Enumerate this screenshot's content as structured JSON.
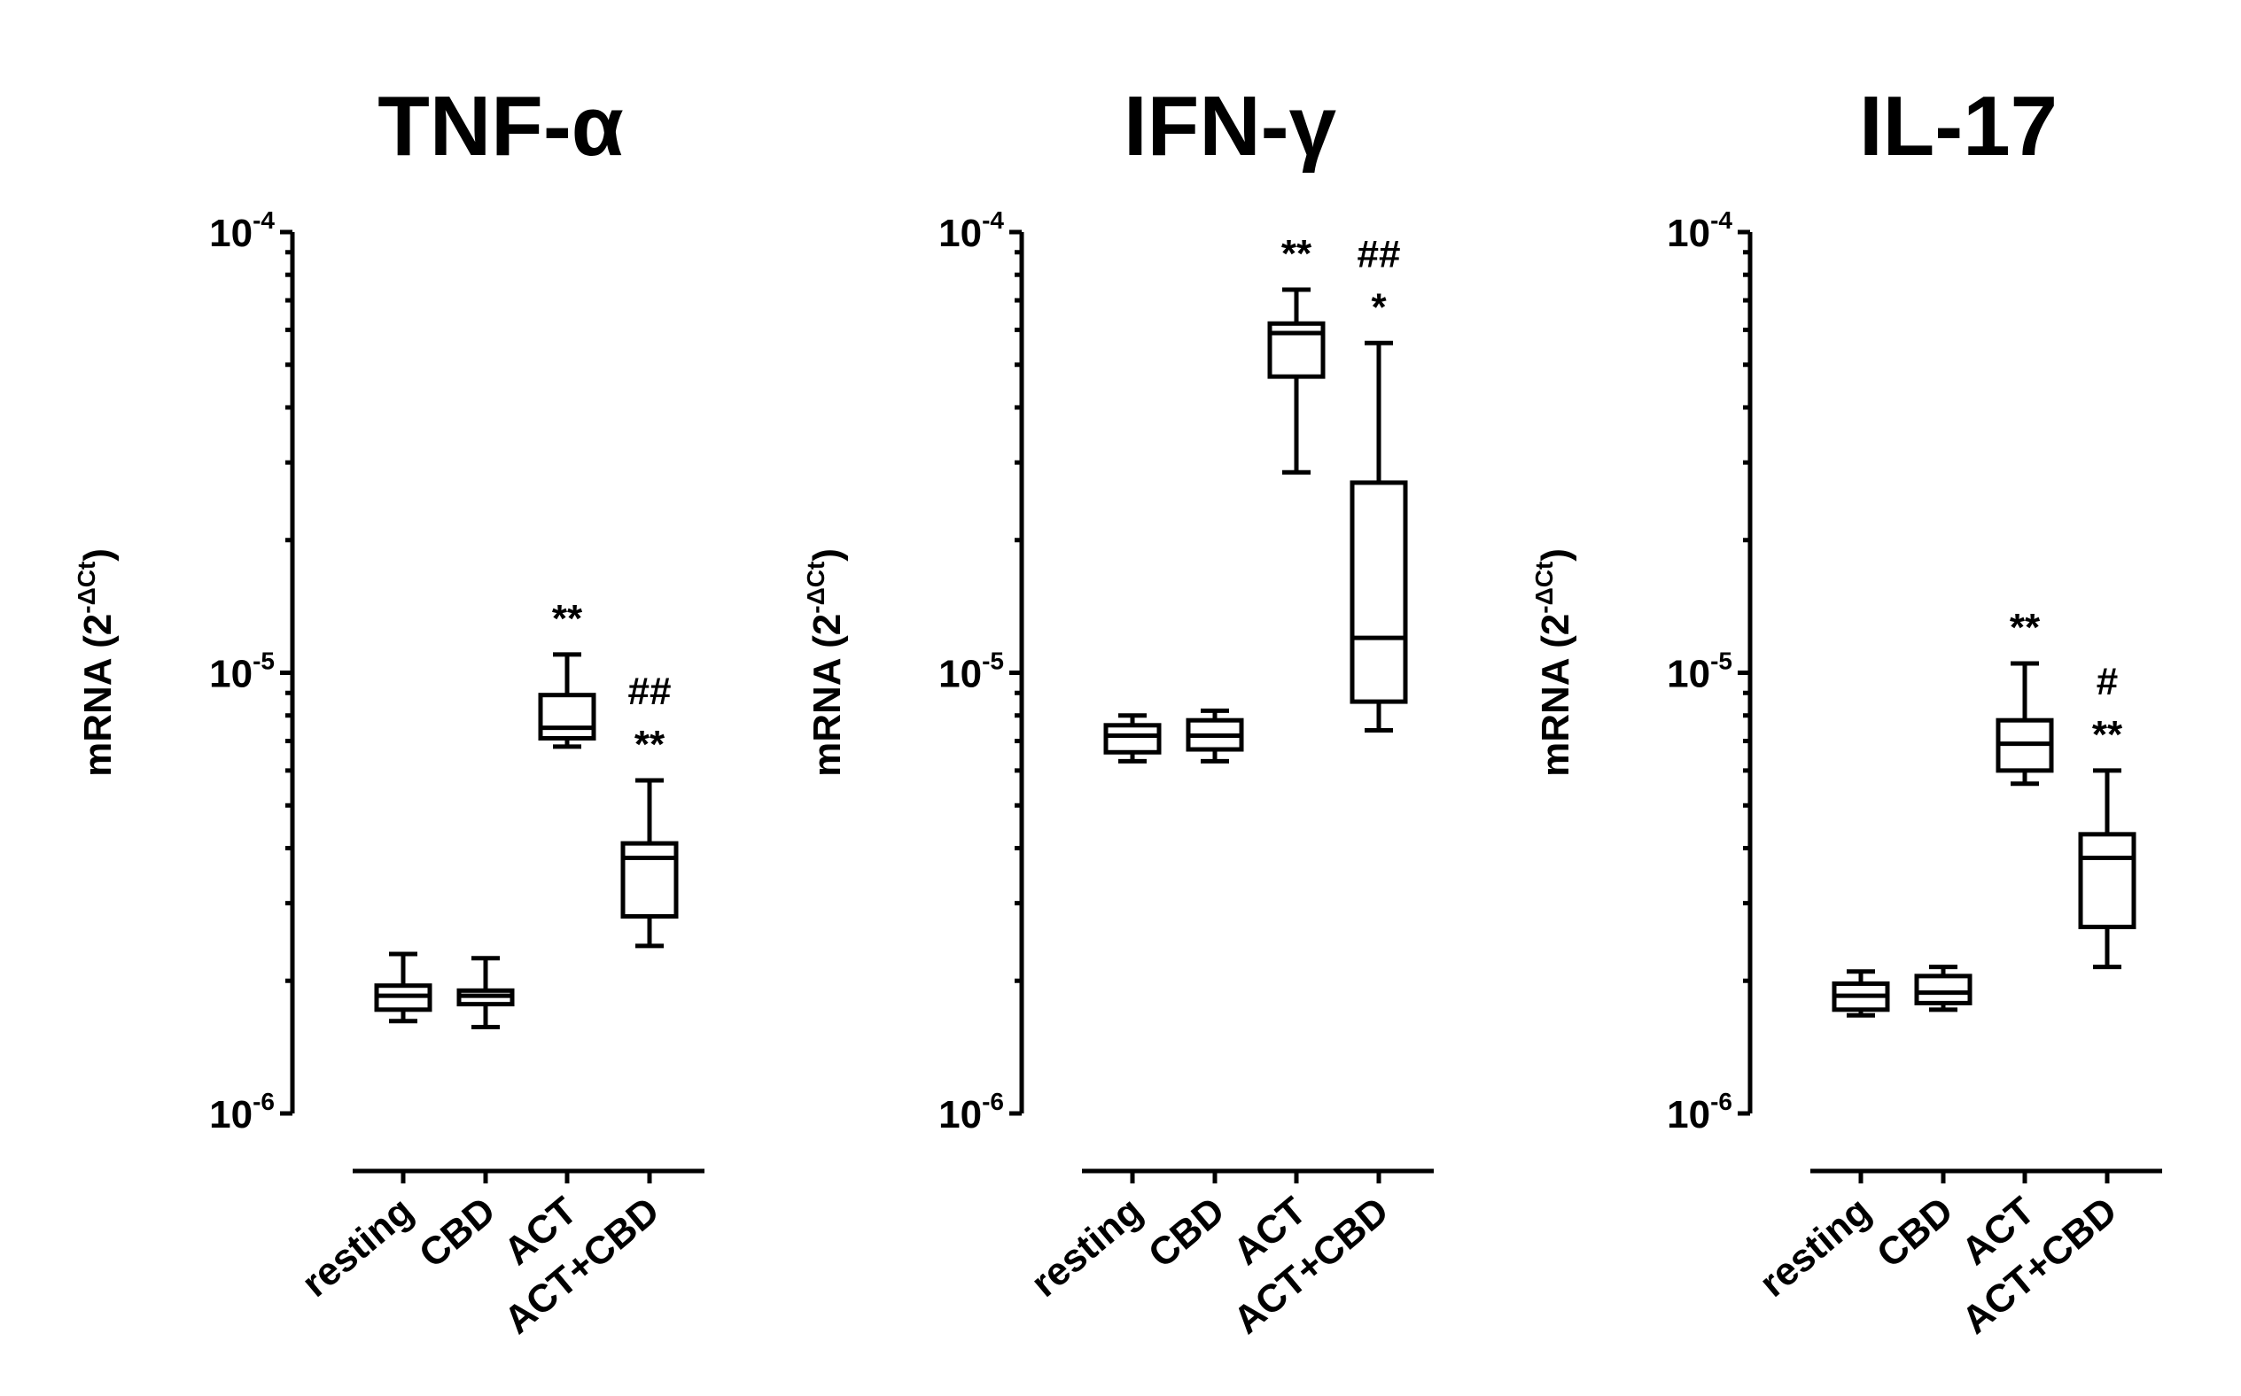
{
  "chart_data": [
    {
      "type": "box",
      "title": "TNF-α",
      "ylabel": "mRNA (2^-ΔCt)",
      "yscale": "log",
      "ylim": [
        1e-06,
        0.0001
      ],
      "yticks": [
        {
          "base": "10",
          "exp": "-4",
          "value": 0.0001
        },
        {
          "base": "10",
          "exp": "-5",
          "value": 1e-05
        },
        {
          "base": "10",
          "exp": "-6",
          "value": 1e-06
        }
      ],
      "categories": [
        "resting",
        "CBD",
        "ACT",
        "ACT+CBD"
      ],
      "boxes": [
        {
          "min": 1.62e-06,
          "q1": 1.72e-06,
          "median": 1.85e-06,
          "q3": 1.95e-06,
          "max": 2.3e-06,
          "annotations": []
        },
        {
          "min": 1.57e-06,
          "q1": 1.77e-06,
          "median": 1.85e-06,
          "q3": 1.9e-06,
          "max": 2.25e-06,
          "annotations": []
        },
        {
          "min": 6.8e-06,
          "q1": 7.1e-06,
          "median": 7.5e-06,
          "q3": 8.9e-06,
          "max": 1.1e-05,
          "annotations": [
            "**"
          ]
        },
        {
          "min": 2.4e-06,
          "q1": 2.8e-06,
          "median": 3.8e-06,
          "q3": 4.1e-06,
          "max": 5.7e-06,
          "annotations": [
            "**",
            "##"
          ]
        }
      ]
    },
    {
      "type": "box",
      "title": "IFN-γ",
      "ylabel": "mRNA (2^-ΔCt)",
      "yscale": "log",
      "ylim": [
        1e-06,
        0.0001
      ],
      "yticks": [
        {
          "base": "10",
          "exp": "-4",
          "value": 0.0001
        },
        {
          "base": "10",
          "exp": "-5",
          "value": 1e-05
        },
        {
          "base": "10",
          "exp": "-6",
          "value": 1e-06
        }
      ],
      "categories": [
        "resting",
        "CBD",
        "ACT",
        "ACT+CBD"
      ],
      "boxes": [
        {
          "min": 6.3e-06,
          "q1": 6.6e-06,
          "median": 7.2e-06,
          "q3": 7.6e-06,
          "max": 8e-06,
          "annotations": []
        },
        {
          "min": 6.3e-06,
          "q1": 6.7e-06,
          "median": 7.2e-06,
          "q3": 7.8e-06,
          "max": 8.2e-06,
          "annotations": []
        },
        {
          "min": 2.85e-05,
          "q1": 4.7e-05,
          "median": 5.9e-05,
          "q3": 6.2e-05,
          "max": 7.4e-05,
          "annotations": [
            "**"
          ]
        },
        {
          "min": 7.4e-06,
          "q1": 8.6e-06,
          "median": 1.2e-05,
          "q3": 2.7e-05,
          "max": 5.6e-05,
          "annotations": [
            "*",
            "##"
          ]
        }
      ]
    },
    {
      "type": "box",
      "title": "IL-17",
      "ylabel": "mRNA (2^-ΔCt)",
      "yscale": "log",
      "ylim": [
        1e-06,
        0.0001
      ],
      "yticks": [
        {
          "base": "10",
          "exp": "-4",
          "value": 0.0001
        },
        {
          "base": "10",
          "exp": "-5",
          "value": 1e-05
        },
        {
          "base": "10",
          "exp": "-6",
          "value": 1e-06
        }
      ],
      "categories": [
        "resting",
        "CBD",
        "ACT",
        "ACT+CBD"
      ],
      "boxes": [
        {
          "min": 1.67e-06,
          "q1": 1.72e-06,
          "median": 1.85e-06,
          "q3": 1.97e-06,
          "max": 2.1e-06,
          "annotations": []
        },
        {
          "min": 1.72e-06,
          "q1": 1.78e-06,
          "median": 1.88e-06,
          "q3": 2.05e-06,
          "max": 2.15e-06,
          "annotations": []
        },
        {
          "min": 5.6e-06,
          "q1": 6e-06,
          "median": 6.9e-06,
          "q3": 7.8e-06,
          "max": 1.05e-05,
          "annotations": [
            "**"
          ]
        },
        {
          "min": 2.15e-06,
          "q1": 2.65e-06,
          "median": 3.8e-06,
          "q3": 4.3e-06,
          "max": 6e-06,
          "annotations": [
            "**",
            "#"
          ]
        }
      ]
    }
  ]
}
